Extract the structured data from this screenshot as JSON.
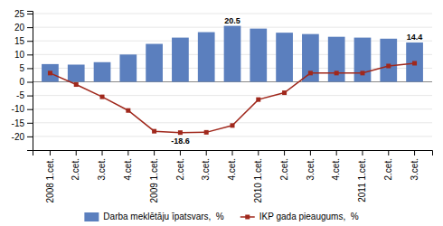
{
  "chart_data": {
    "type": "bar",
    "categories": [
      "2008 1.cet.",
      "2.cet.",
      "3.cet.",
      "4.cet.",
      "2009 1.cet.",
      "2.cet.",
      "3.cet.",
      "4.cet.",
      "2010 1.cet.",
      "2.cet.",
      "3.cet.",
      "4.cet.",
      "2011 1.cet.",
      "2.cet.",
      "3.cet."
    ],
    "series": [
      {
        "name": "Darba meklētāju īpatsvars,  %",
        "type": "bar",
        "color": "#5B7FBE",
        "values": [
          6.5,
          6.3,
          7.2,
          10.0,
          13.9,
          16.2,
          18.2,
          20.5,
          19.5,
          18.0,
          17.5,
          16.5,
          16.2,
          15.8,
          14.4
        ],
        "data_labels": true,
        "value_labels": [
          null,
          null,
          null,
          null,
          null,
          null,
          null,
          "20.5",
          null,
          null,
          null,
          null,
          null,
          null,
          "14.4"
        ]
      },
      {
        "name": "IKP gada pieaugums,  %",
        "type": "line",
        "color": "#A0281C",
        "marker": "square",
        "values": [
          3.2,
          -1.0,
          -5.5,
          -10.5,
          -18.1,
          -18.6,
          -18.5,
          -16.0,
          -6.5,
          -4.0,
          3.2,
          3.2,
          3.2,
          5.8,
          6.8
        ],
        "data_labels": true,
        "value_labels": [
          null,
          null,
          null,
          null,
          null,
          "-18.6",
          null,
          null,
          null,
          null,
          null,
          null,
          null,
          null,
          null
        ]
      }
    ],
    "ylim": [
      -25,
      26
    ],
    "yticks": [
      -20,
      -15,
      -10,
      -5,
      0,
      5,
      10,
      15,
      20,
      25
    ],
    "grid": true,
    "legend": "bottom"
  }
}
